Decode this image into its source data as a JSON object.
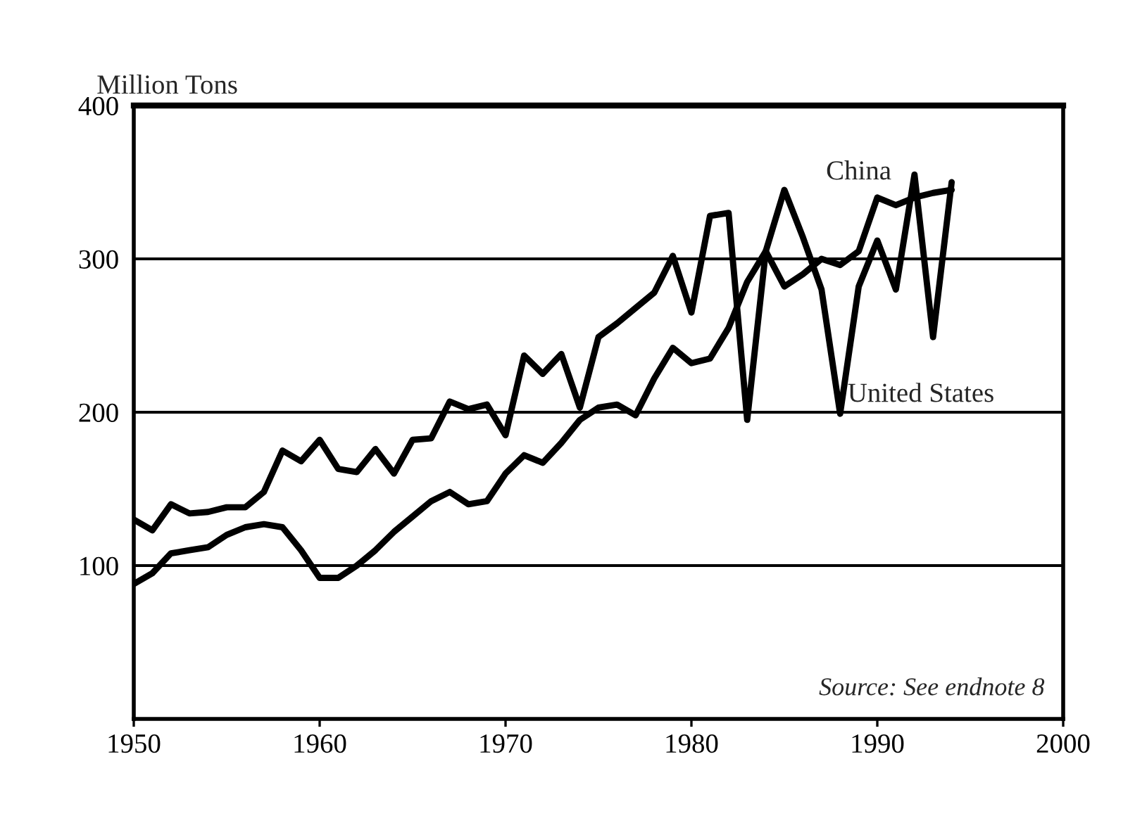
{
  "chart_data": {
    "type": "line",
    "ylabel": "Million Tons",
    "x": [
      1950,
      1951,
      1952,
      1953,
      1954,
      1955,
      1956,
      1957,
      1958,
      1959,
      1960,
      1961,
      1962,
      1963,
      1964,
      1965,
      1966,
      1967,
      1968,
      1969,
      1970,
      1971,
      1972,
      1973,
      1974,
      1975,
      1976,
      1977,
      1978,
      1979,
      1980,
      1981,
      1982,
      1983,
      1984,
      1985,
      1986,
      1987,
      1988,
      1989,
      1990,
      1991,
      1992,
      1993,
      1994
    ],
    "series": [
      {
        "name": "United States",
        "color": "#000000",
        "values": [
          130,
          123,
          140,
          134,
          135,
          138,
          138,
          148,
          175,
          168,
          182,
          163,
          161,
          176,
          160,
          182,
          183,
          207,
          202,
          205,
          185,
          237,
          225,
          238,
          203,
          249,
          258,
          268,
          278,
          302,
          265,
          328,
          330,
          195,
          305,
          345,
          314,
          280,
          199,
          282,
          312,
          280,
          355,
          249,
          350
        ]
      },
      {
        "name": "China",
        "color": "#000000",
        "values": [
          88,
          95,
          108,
          110,
          112,
          120,
          125,
          127,
          125,
          110,
          92,
          92,
          100,
          110,
          122,
          132,
          142,
          148,
          140,
          142,
          160,
          172,
          167,
          180,
          195,
          203,
          205,
          198,
          222,
          242,
          232,
          235,
          255,
          285,
          305,
          282,
          290,
          300,
          296,
          305,
          340,
          335,
          340,
          343,
          345
        ]
      }
    ],
    "xlim": [
      1950,
      2000
    ],
    "xticks": [
      1950,
      1960,
      1970,
      1980,
      1990,
      2000
    ],
    "ylim": [
      0,
      400
    ],
    "yticks": [
      100,
      200,
      300,
      400
    ],
    "grid": "y",
    "legend": false,
    "marker": "none",
    "line_style": "solid",
    "annotations": [
      "Source: See endnote 8"
    ]
  }
}
